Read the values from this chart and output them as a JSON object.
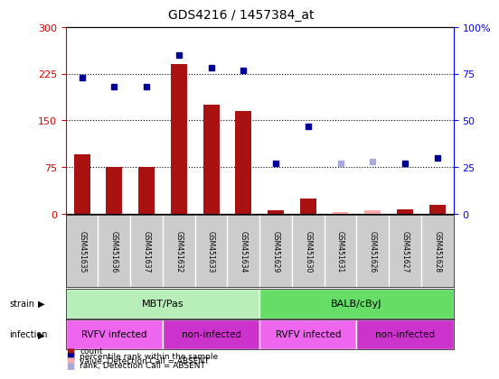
{
  "title": "GDS4216 / 1457384_at",
  "samples": [
    "GSM451635",
    "GSM451636",
    "GSM451637",
    "GSM451632",
    "GSM451633",
    "GSM451634",
    "GSM451629",
    "GSM451630",
    "GSM451631",
    "GSM451626",
    "GSM451627",
    "GSM451628"
  ],
  "bar_values": [
    95,
    75,
    75,
    240,
    175,
    165,
    5,
    25,
    3,
    5,
    7,
    15
  ],
  "bar_absent": [
    false,
    false,
    false,
    false,
    false,
    false,
    false,
    false,
    true,
    true,
    false,
    false
  ],
  "blue_values": [
    73,
    68,
    68,
    85,
    78,
    77,
    27,
    47,
    27,
    28,
    27,
    30
  ],
  "blue_absent": [
    false,
    false,
    false,
    false,
    false,
    false,
    false,
    false,
    true,
    true,
    false,
    false
  ],
  "left_ylim": [
    0,
    300
  ],
  "right_ylim": [
    0,
    100
  ],
  "left_yticks": [
    0,
    75,
    150,
    225,
    300
  ],
  "right_yticks": [
    0,
    25,
    50,
    75,
    100
  ],
  "right_ytick_labels": [
    "0",
    "25",
    "50",
    "75",
    "100%"
  ],
  "strain_groups": [
    {
      "label": "MBT/Pas",
      "span": [
        0,
        6
      ],
      "color": "#B8EEB8"
    },
    {
      "label": "BALB/cByJ",
      "span": [
        6,
        12
      ],
      "color": "#66DD66"
    }
  ],
  "infection_groups": [
    {
      "label": "RVFV infected",
      "span": [
        0,
        3
      ],
      "color": "#EE66EE"
    },
    {
      "label": "non-infected",
      "span": [
        3,
        6
      ],
      "color": "#CC33CC"
    },
    {
      "label": "RVFV infected",
      "span": [
        6,
        9
      ],
      "color": "#EE66EE"
    },
    {
      "label": "non-infected",
      "span": [
        9,
        12
      ],
      "color": "#CC33CC"
    }
  ],
  "bar_color": "#AA1111",
  "bar_absent_color": "#FFAAAA",
  "blue_color": "#000099",
  "blue_absent_color": "#AAAADD",
  "legend_items": [
    {
      "label": "count",
      "color": "#AA1111"
    },
    {
      "label": "percentile rank within the sample",
      "color": "#000099"
    },
    {
      "label": "value, Detection Call = ABSENT",
      "color": "#FFAAAA"
    },
    {
      "label": "rank, Detection Call = ABSENT",
      "color": "#AAAADD"
    }
  ]
}
